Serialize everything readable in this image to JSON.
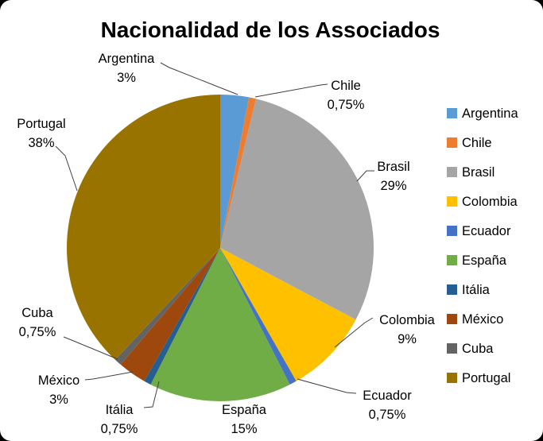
{
  "title": "Nacionalidad de los Associados",
  "chart_data": {
    "type": "pie",
    "title": "Nacionalidad de los Associados",
    "unit": "%",
    "start_angle_deg": 0,
    "direction": "clockwise",
    "legend_position": "right",
    "labels_position": "outside-with-leader-lines",
    "decimal_separator": ",",
    "total": 100,
    "slices": [
      {
        "label": "Argentina",
        "value": 3,
        "display_pct": "3%",
        "color": "#5B9BD5"
      },
      {
        "label": "Chile",
        "value": 0.75,
        "display_pct": "0,75%",
        "color": "#ED7D31"
      },
      {
        "label": "Brasil",
        "value": 29,
        "display_pct": "29%",
        "color": "#A5A5A5"
      },
      {
        "label": "Colombia",
        "value": 9,
        "display_pct": "9%",
        "color": "#FFC000"
      },
      {
        "label": "Ecuador",
        "value": 0.75,
        "display_pct": "0,75%",
        "color": "#4472C4"
      },
      {
        "label": "España",
        "value": 15,
        "display_pct": "15%",
        "color": "#70AD47"
      },
      {
        "label": "Itália",
        "value": 0.75,
        "display_pct": "0,75%",
        "color": "#255E91"
      },
      {
        "label": "México",
        "value": 3,
        "display_pct": "3%",
        "color": "#9E480E"
      },
      {
        "label": "Cuba",
        "value": 0.75,
        "display_pct": "0,75%",
        "color": "#636363"
      },
      {
        "label": "Portugal",
        "value": 38,
        "display_pct": "38%",
        "color": "#997300"
      }
    ]
  },
  "surface": {
    "background_color": "#FFFFFF",
    "outer_color": "#000000",
    "text_color": "#000000"
  }
}
